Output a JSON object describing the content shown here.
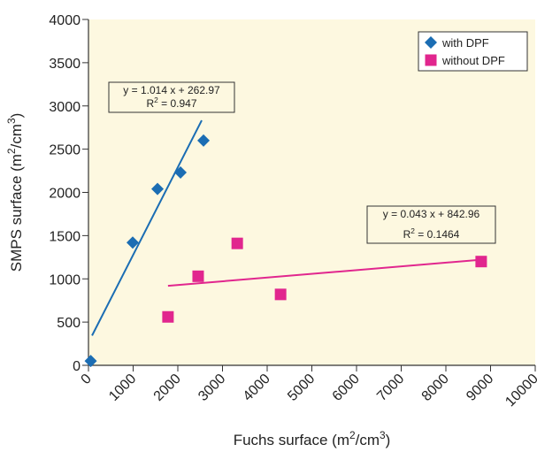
{
  "chart_data": {
    "type": "scatter",
    "x_label": [
      "Fuchs surface (m",
      "2",
      "/cm",
      "3",
      ")"
    ],
    "y_label": [
      "SMPS surface (m",
      "2",
      "/cm",
      "3",
      ")"
    ],
    "xlim": [
      0,
      10000
    ],
    "ylim": [
      0,
      4000
    ],
    "xticks": [
      0,
      1000,
      2000,
      3000,
      4000,
      5000,
      6000,
      7000,
      8000,
      9000,
      10000
    ],
    "yticks": [
      0,
      500,
      1000,
      1500,
      2000,
      2500,
      3000,
      3500,
      4000
    ],
    "background": "#fdf8e0",
    "legend": "top-right",
    "series": [
      {
        "name": "with DPF",
        "color": "#1b6db3",
        "marker": "diamond",
        "x": [
          50,
          990,
          1545,
          2060,
          2575
        ],
        "values": [
          50,
          1420,
          2040,
          2230,
          2600
        ],
        "trendline": {
          "slope": 1.014,
          "intercept": 262.97,
          "x_range": [
            80,
            2535
          ],
          "equation": "y = 1.014 x + 262.97",
          "r2_label": [
            "R",
            "2",
            " = 0.947"
          ]
        }
      },
      {
        "name": "without DPF",
        "color": "#e1268e",
        "marker": "square",
        "x": [
          1780,
          2455,
          3330,
          4300,
          8790
        ],
        "values": [
          560,
          1030,
          1410,
          820,
          1200
        ],
        "trendline": {
          "slope": 0.043,
          "intercept": 842.96,
          "x_range": [
            1780,
            8790
          ],
          "equation": "y = 0.043 x + 842.96",
          "r2_label": [
            "R",
            "2",
            " = 0.1464"
          ]
        }
      }
    ]
  }
}
